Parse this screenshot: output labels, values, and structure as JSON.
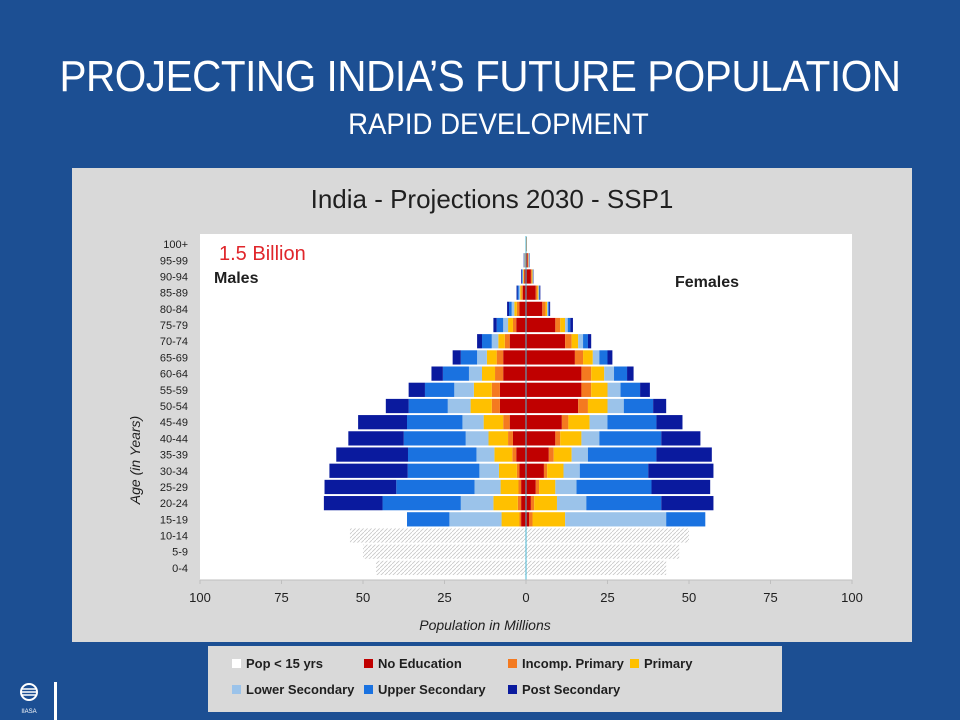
{
  "slide": {
    "title": "PROJECTING INDIA’S FUTURE POPULATION",
    "subtitle": "RAPID DEVELOPMENT"
  },
  "logo": {
    "text": "IIASA"
  },
  "chart_data": {
    "type": "bar",
    "orientation": "horizontal-pyramid",
    "title": "India - Projections 2030 - SSP1",
    "annotation": "1.5 Billion",
    "left_label": "Males",
    "right_label": "Females",
    "xlabel": "Population in Millions",
    "ylabel": "Age (in Years)",
    "xlim": [
      -100,
      100
    ],
    "xticks": [
      100,
      75,
      50,
      25,
      0,
      25,
      50,
      75,
      100
    ],
    "categories": [
      "0-4",
      "5-9",
      "10-14",
      "15-19",
      "20-24",
      "25-29",
      "30-34",
      "35-39",
      "40-44",
      "45-49",
      "50-54",
      "55-59",
      "60-64",
      "65-69",
      "70-74",
      "75-79",
      "80-84",
      "85-89",
      "90-94",
      "95-99",
      "100+"
    ],
    "series_names": [
      "Pop < 15 yrs",
      "No Education",
      "Incomp. Primary",
      "Primary",
      "Lower Secondary",
      "Upper Secondary",
      "Post Secondary"
    ],
    "colors": [
      "#ffffff",
      "#c00000",
      "#f47a20",
      "#ffc000",
      "#9bc3ea",
      "#1a72e0",
      "#0a1a9e"
    ],
    "males": [
      [
        46,
        0,
        0,
        0,
        0,
        0,
        0
      ],
      [
        50,
        0,
        0,
        0,
        0,
        0,
        0
      ],
      [
        54,
        0,
        0,
        0,
        0,
        0,
        0
      ],
      [
        0,
        1.5,
        0.5,
        5.5,
        16,
        13,
        0
      ],
      [
        0,
        1.5,
        1,
        7.5,
        10,
        24,
        18
      ],
      [
        0,
        1.5,
        0.8,
        5.5,
        8,
        24,
        22
      ],
      [
        0,
        2,
        0.8,
        5.5,
        6,
        22,
        24
      ],
      [
        0,
        3,
        1.2,
        5.5,
        5.5,
        21,
        22
      ],
      [
        0,
        4,
        1.5,
        6,
        7,
        19,
        17
      ],
      [
        0,
        5,
        2,
        6,
        6.5,
        17,
        15
      ],
      [
        0,
        8,
        2.5,
        6.5,
        7,
        12,
        7
      ],
      [
        0,
        8,
        2.5,
        5.5,
        6,
        9,
        5
      ],
      [
        0,
        7,
        2.5,
        4,
        4,
        8,
        3.5
      ],
      [
        0,
        7,
        2,
        3,
        3,
        5,
        2.5
      ],
      [
        0,
        5,
        1.5,
        2,
        2,
        3,
        1.5
      ],
      [
        0,
        3,
        1,
        1.5,
        1.5,
        2,
        1
      ],
      [
        0,
        2,
        0.8,
        0.8,
        0.8,
        0.8,
        0.6
      ],
      [
        0,
        1,
        0.4,
        0.4,
        0.4,
        0.4,
        0.3
      ],
      [
        0,
        0.5,
        0.2,
        0.2,
        0.2,
        0.2,
        0.2
      ],
      [
        0,
        0.2,
        0.1,
        0.1,
        0.1,
        0.1,
        0.1
      ],
      [
        0,
        0.1,
        0,
        0,
        0,
        0,
        0
      ]
    ],
    "females": [
      [
        43,
        0,
        0,
        0,
        0,
        0,
        0
      ],
      [
        47,
        0,
        0,
        0,
        0,
        0,
        0
      ],
      [
        50,
        0,
        0,
        0,
        0,
        0,
        0
      ],
      [
        0,
        1,
        1,
        10,
        31,
        12,
        0
      ],
      [
        0,
        1.5,
        1,
        7,
        9,
        23,
        16
      ],
      [
        0,
        3,
        1,
        5,
        6.5,
        23,
        18
      ],
      [
        0,
        5.5,
        1,
        5,
        5,
        21,
        20
      ],
      [
        0,
        7,
        1.5,
        5.5,
        5,
        21,
        17
      ],
      [
        0,
        9,
        1.5,
        6.5,
        5.5,
        19,
        12
      ],
      [
        0,
        11,
        2,
        6.5,
        5.5,
        15,
        8
      ],
      [
        0,
        16,
        3,
        6,
        5,
        9,
        4
      ],
      [
        0,
        17,
        3,
        5,
        4,
        6,
        3
      ],
      [
        0,
        17,
        3,
        4,
        3,
        4,
        2
      ],
      [
        0,
        15,
        2.5,
        3,
        2,
        2.5,
        1.5
      ],
      [
        0,
        12,
        2,
        2,
        1.5,
        1.5,
        1
      ],
      [
        0,
        9,
        1.5,
        1.5,
        0.8,
        0.8,
        0.8
      ],
      [
        0,
        5,
        1,
        0.5,
        0.3,
        0.3,
        0.3
      ],
      [
        0,
        3,
        0.5,
        0.3,
        0.2,
        0.2,
        0.2
      ],
      [
        0,
        1.5,
        0.3,
        0.2,
        0.1,
        0.1,
        0.1
      ],
      [
        0,
        0.5,
        0.2,
        0.1,
        0.1,
        0.1,
        0.1
      ],
      [
        0,
        0.2,
        0.1,
        0,
        0,
        0,
        0
      ]
    ]
  }
}
